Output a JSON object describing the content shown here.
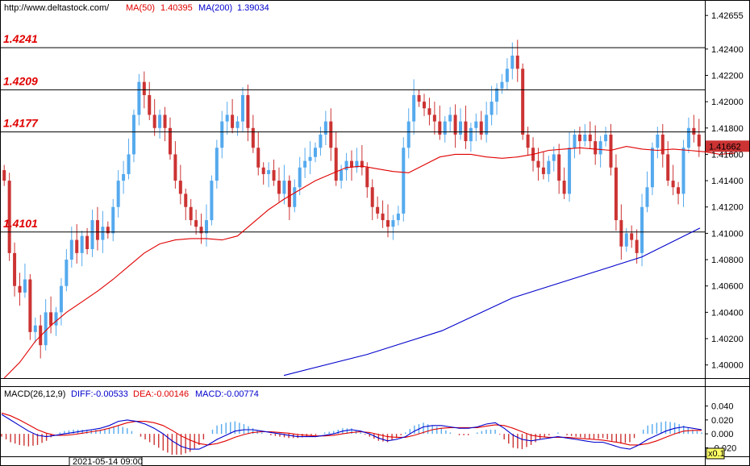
{
  "header": {
    "url": "http://www.deltastock.com/",
    "ma50_label": "MA(50)",
    "ma50_value": "1.40395",
    "ma200_label": "MA(200)",
    "ma200_value": "1.39034",
    "ma50_color": "#e00000",
    "ma200_color": "#0000cc"
  },
  "macd_header": {
    "label": "MACD(26,12,9)",
    "diff": "DIFF:-0.00533",
    "dea": "DEA:-0.00146",
    "macd": "MACD:-0.00774"
  },
  "footer": {
    "date": "2021-05-14 09:00",
    "zoom": "x0.1"
  },
  "colors": {
    "bull": "#55aaee",
    "bear": "#cc3333",
    "level_line": "#000000",
    "level_label": "#e00000",
    "price_tag_bg": "#cc3333"
  },
  "chart_data": [
    {
      "type": "candlestick",
      "ylim": [
        1.399,
        1.4265
      ],
      "y_ticks": [
        "1.40000",
        "1.40200",
        "1.40400",
        "1.40600",
        "1.40800",
        "1.41000",
        "1.41200",
        "1.41400",
        "1.41600",
        "1.41800",
        "1.42000",
        "1.42200",
        "1.42400",
        "1.42655"
      ],
      "current_price": "1.41662",
      "levels": [
        {
          "value": 1.4241,
          "label": "1.4241"
        },
        {
          "value": 1.4209,
          "label": "1.4209"
        },
        {
          "value": 1.4177,
          "label": "1.4177"
        },
        {
          "value": 1.4101,
          "label": "1.4101"
        }
      ],
      "closes": [
        1.414,
        1.4085,
        1.406,
        1.4055,
        1.4065,
        1.4025,
        1.403,
        1.4015,
        1.404,
        1.403,
        1.404,
        1.406,
        1.408,
        1.4095,
        1.4085,
        1.4098,
        1.4088,
        1.411,
        1.4095,
        1.4105,
        1.41,
        1.412,
        1.414,
        1.4145,
        1.416,
        1.419,
        1.4215,
        1.4205,
        1.419,
        1.418,
        1.419,
        1.418,
        1.416,
        1.414,
        1.413,
        1.412,
        1.411,
        1.4105,
        1.41,
        1.411,
        1.414,
        1.4165,
        1.4185,
        1.419,
        1.418,
        1.4185,
        1.4205,
        1.418,
        1.4165,
        1.415,
        1.4145,
        1.4148,
        1.414,
        1.413,
        1.414,
        1.412,
        1.4135,
        1.415,
        1.4155,
        1.4158,
        1.4165,
        1.4175,
        1.4185,
        1.4165,
        1.414,
        1.4148,
        1.4155,
        1.415,
        1.4155,
        1.415,
        1.4135,
        1.412,
        1.4115,
        1.411,
        1.4105,
        1.411,
        1.4115,
        1.4165,
        1.4185,
        1.4205,
        1.42,
        1.4195,
        1.419,
        1.4185,
        1.4175,
        1.4185,
        1.419,
        1.4175,
        1.4185,
        1.417,
        1.418,
        1.4185,
        1.4175,
        1.419,
        1.42,
        1.421,
        1.4215,
        1.4225,
        1.4235,
        1.4225,
        1.4175,
        1.4165,
        1.4155,
        1.415,
        1.4145,
        1.4155,
        1.416,
        1.414,
        1.413,
        1.4165,
        1.4175,
        1.417,
        1.4175,
        1.417,
        1.416,
        1.417,
        1.4175,
        1.415,
        1.411,
        1.409,
        1.41,
        1.4095,
        1.4085,
        1.412,
        1.4135,
        1.4165,
        1.4175,
        1.416,
        1.414,
        1.4135,
        1.413,
        1.4165,
        1.418,
        1.4175,
        1.4166
      ],
      "ma50": [
        1.399,
        1.4002,
        1.4018,
        1.403,
        1.404,
        1.4048,
        1.4056,
        1.4065,
        1.4075,
        1.4085,
        1.4092,
        1.4095,
        1.4096,
        1.4096,
        1.4095,
        1.4098,
        1.4108,
        1.4118,
        1.4126,
        1.4133,
        1.414,
        1.4145,
        1.415,
        1.4151,
        1.4149,
        1.4147,
        1.4146,
        1.4152,
        1.4158,
        1.416,
        1.416,
        1.4158,
        1.4157,
        1.4158,
        1.416,
        1.4163,
        1.4164,
        1.4165,
        1.4164,
        1.4163,
        1.4166,
        1.4164,
        1.4163,
        1.4164,
        1.4163,
        1.4162,
        1.416,
        1.4161
      ],
      "ma50_step": 3,
      "ma200": [
        {
          "x": 0.0,
          "y": 1.3992
        },
        {
          "x": 0.2,
          "y": 1.4008
        },
        {
          "x": 0.38,
          "y": 1.4026
        },
        {
          "x": 0.55,
          "y": 1.4051
        },
        {
          "x": 0.72,
          "y": 1.4068
        },
        {
          "x": 0.86,
          "y": 1.4082
        },
        {
          "x": 1.0,
          "y": 1.4104
        }
      ]
    },
    {
      "type": "bar+line",
      "name": "MACD",
      "ylim": [
        -0.03,
        0.05
      ],
      "y_ticks": [
        "0.040",
        "0.020",
        "0.000",
        "-0.020"
      ],
      "diff": [
        0.028,
        0.02,
        0.012,
        0.004,
        -0.002,
        -0.004,
        -0.002,
        0.0,
        0.002,
        0.004,
        0.006,
        0.008,
        0.012,
        0.018,
        0.02,
        0.018,
        0.014,
        0.008,
        0.0,
        -0.01,
        -0.018,
        -0.022,
        -0.022,
        -0.016,
        -0.008,
        -0.002,
        0.004,
        0.006,
        0.006,
        0.004,
        0.002,
        0.0,
        -0.002,
        -0.004,
        -0.004,
        -0.004,
        -0.002,
        0.0,
        0.004,
        0.006,
        0.004,
        0.0,
        -0.006,
        -0.01,
        -0.008,
        -0.004,
        0.004,
        0.01,
        0.012,
        0.012,
        0.01,
        0.008,
        0.008,
        0.01,
        0.014,
        0.016,
        0.008,
        -0.002,
        -0.008,
        -0.01,
        -0.008,
        -0.006,
        -0.004,
        -0.006,
        -0.008,
        -0.01,
        -0.012,
        -0.012,
        -0.016,
        -0.02,
        -0.022,
        -0.016,
        -0.008,
        -0.002,
        0.004,
        0.008,
        0.01,
        0.008,
        0.006
      ],
      "dea": [
        0.03,
        0.026,
        0.02,
        0.013,
        0.006,
        0.001,
        -0.002,
        -0.002,
        -0.001,
        0.001,
        0.003,
        0.005,
        0.008,
        0.012,
        0.016,
        0.018,
        0.018,
        0.016,
        0.012,
        0.005,
        -0.003,
        -0.009,
        -0.014,
        -0.016,
        -0.014,
        -0.01,
        -0.005,
        -0.001,
        0.002,
        0.003,
        0.003,
        0.002,
        0.001,
        -0.001,
        -0.002,
        -0.003,
        -0.003,
        -0.002,
        0.0,
        0.002,
        0.003,
        0.002,
        -0.001,
        -0.004,
        -0.005,
        -0.005,
        -0.002,
        0.002,
        0.006,
        0.008,
        0.009,
        0.009,
        0.009,
        0.009,
        0.011,
        0.013,
        0.012,
        0.008,
        0.003,
        -0.002,
        -0.004,
        -0.005,
        -0.005,
        -0.005,
        -0.006,
        -0.007,
        -0.008,
        -0.009,
        -0.011,
        -0.013,
        -0.016,
        -0.016,
        -0.014,
        -0.01,
        -0.005,
        0.0,
        0.004,
        0.005,
        0.005
      ]
    }
  ]
}
